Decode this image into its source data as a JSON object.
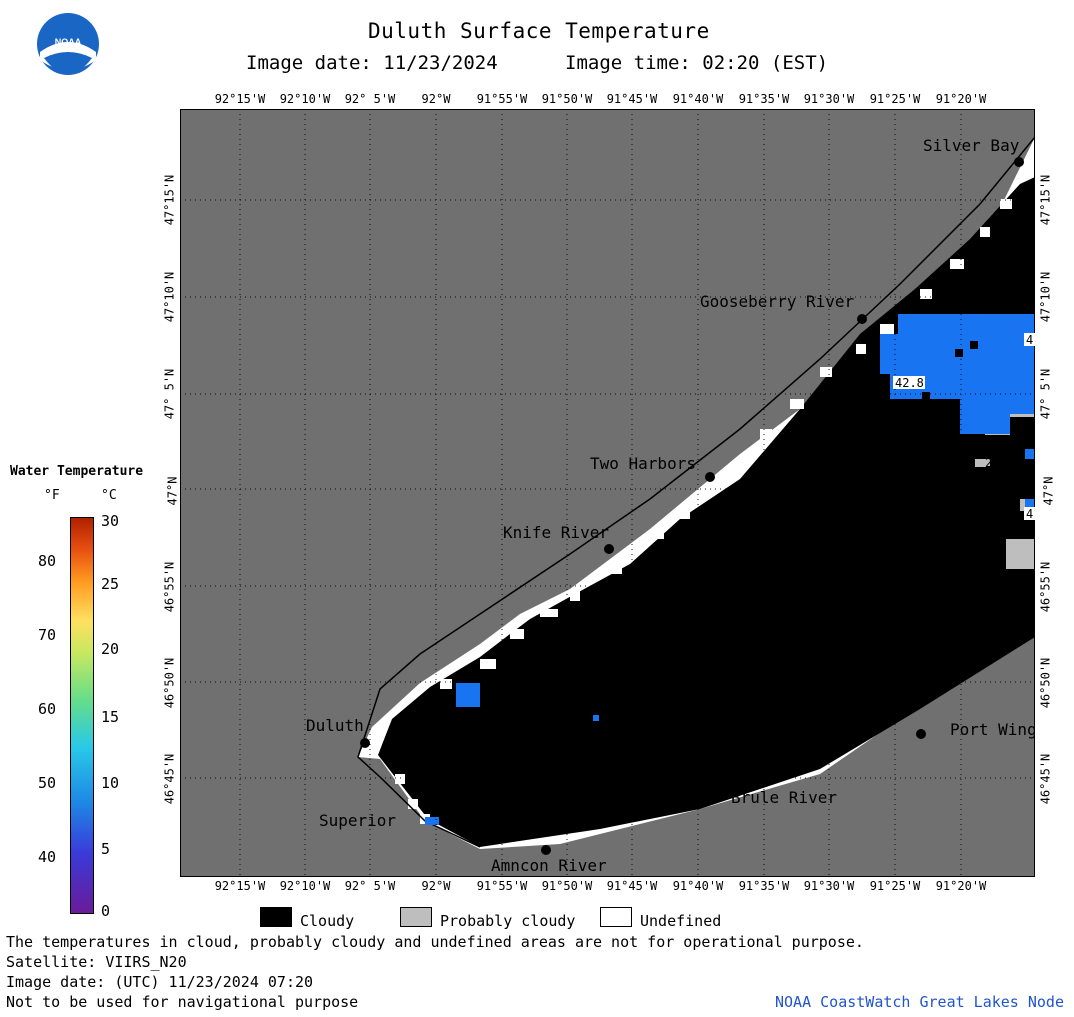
{
  "header": {
    "title": "Duluth Surface Temperature",
    "image_date": "Image date: 11/23/2024",
    "image_time": "Image time: 02:20 (EST)"
  },
  "logo": {
    "text": "NOAA"
  },
  "axes": {
    "lon_labels": [
      "92°15'W",
      "92°10'W",
      "92° 5'W",
      "92°W",
      "91°55'W",
      "91°50'W",
      "91°45'W",
      "91°40'W",
      "91°35'W",
      "91°30'W",
      "91°25'W",
      "91°20'W"
    ],
    "lat_labels": [
      "47°15'N",
      "47°10'N",
      "47° 5'N",
      "47°N",
      "46°55'N",
      "46°50'N",
      "46°45'N"
    ]
  },
  "places": [
    {
      "name": "Silver Bay"
    },
    {
      "name": "Gooseberry River"
    },
    {
      "name": "Two Harbors"
    },
    {
      "name": "Knife River"
    },
    {
      "name": "Duluth"
    },
    {
      "name": "Superior"
    },
    {
      "name": "Amncon River"
    },
    {
      "name": "Brule River"
    },
    {
      "name": "Port Wing"
    }
  ],
  "contour_labels": [
    "42.8",
    "4",
    "2",
    "4"
  ],
  "scale": {
    "title": "Water Temperature",
    "unit_f": "°F",
    "unit_c": "°C",
    "f_ticks": [
      "80",
      "70",
      "60",
      "50",
      "40"
    ],
    "c_ticks": [
      "30",
      "25",
      "20",
      "15",
      "10",
      "5",
      "0"
    ]
  },
  "legend": {
    "cloudy": "Cloudy",
    "probably_cloudy": "Probably cloudy",
    "undefined": "Undefined"
  },
  "footer": {
    "line1": "The temperatures in cloud, probably cloudy and undefined areas are not for operational purpose.",
    "line2": "Satellite: VIIRS_N20",
    "line3": "Image date: (UTC) 11/23/2024  07:20",
    "line4": "Not to be used for navigational purpose",
    "credit": "NOAA CoastWatch Great Lakes Node"
  },
  "colors": {
    "land": "#707070",
    "cloud": "#000000",
    "undefined": "#ffffff",
    "probably_cloudy": "#bebebe",
    "water_cold": "#1874f0"
  }
}
